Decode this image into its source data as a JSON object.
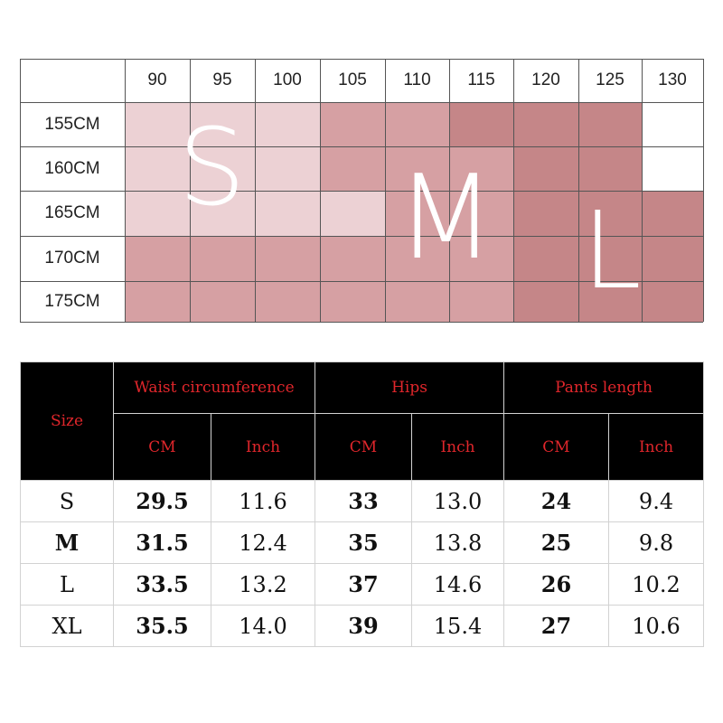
{
  "grid": {
    "waist_headers": [
      "90",
      "95",
      "100",
      "105",
      "110",
      "115",
      "120",
      "125",
      "130"
    ],
    "height_labels": [
      "155CM",
      "160CM",
      "165CM",
      "170CM",
      "175CM"
    ],
    "size_zones": [
      "S",
      "M",
      "L"
    ],
    "colors": {
      "light": "#ecd1d4",
      "medium": "#d6a0a3",
      "dark": "#c58688",
      "empty": "#ffffff"
    },
    "cell_shades": [
      [
        "light",
        "light",
        "light",
        "medium",
        "medium",
        "dark",
        "dark",
        "dark",
        "empty"
      ],
      [
        "light",
        "light",
        "light",
        "medium",
        "medium",
        "medium",
        "dark",
        "dark",
        "empty"
      ],
      [
        "light",
        "light",
        "light",
        "light",
        "medium",
        "medium",
        "dark",
        "dark",
        "dark"
      ],
      [
        "medium",
        "medium",
        "medium",
        "medium",
        "medium",
        "medium",
        "dark",
        "dark",
        "dark"
      ],
      [
        "medium",
        "medium",
        "medium",
        "medium",
        "medium",
        "medium",
        "dark",
        "dark",
        "dark"
      ]
    ]
  },
  "table": {
    "size_header": "Size",
    "groups": [
      "Waist circumference",
      "Hips",
      "Pants length"
    ],
    "units": [
      "CM",
      "Inch",
      "CM",
      "Inch",
      "CM",
      "Inch"
    ],
    "rows": [
      {
        "size": "S",
        "values": [
          "29.5",
          "11.6",
          "33",
          "13.0",
          "24",
          "9.4"
        ]
      },
      {
        "size": "M",
        "values": [
          "31.5",
          "12.4",
          "35",
          "13.8",
          "25",
          "9.8"
        ]
      },
      {
        "size": "L",
        "values": [
          "33.5",
          "13.2",
          "37",
          "14.6",
          "26",
          "10.2"
        ]
      },
      {
        "size": "XL",
        "values": [
          "35.5",
          "14.0",
          "39",
          "15.4",
          "27",
          "10.6"
        ]
      }
    ]
  }
}
